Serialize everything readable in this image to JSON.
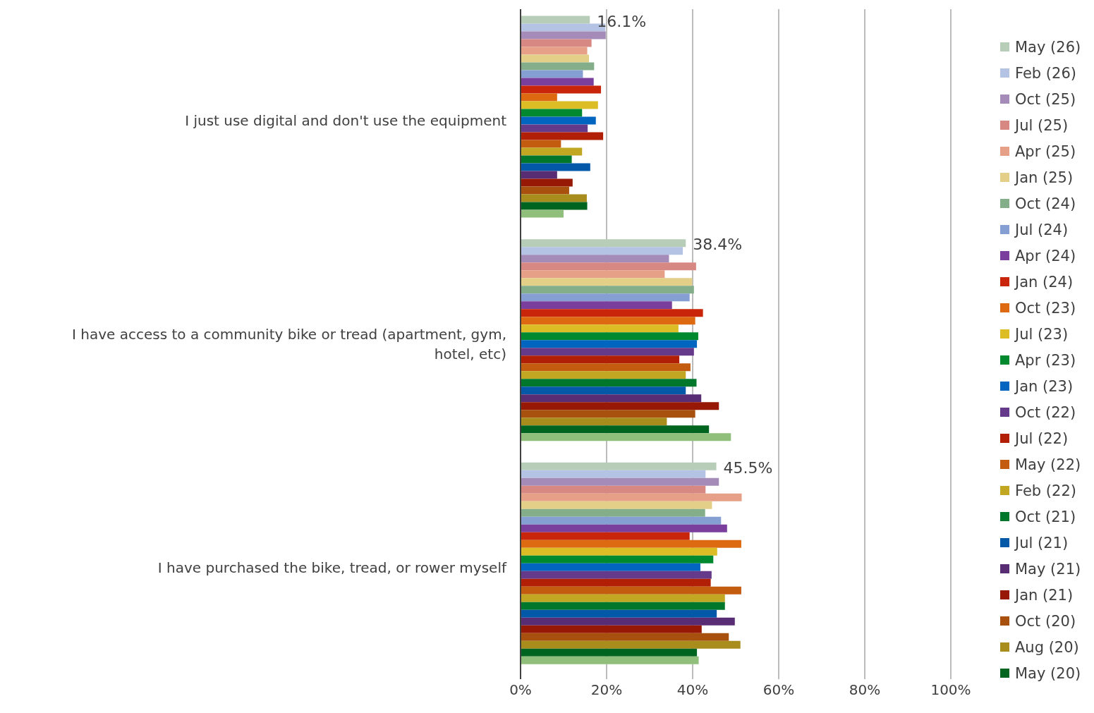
{
  "chart_data": {
    "type": "bar",
    "orientation": "horizontal",
    "categories": [
      "I just use digital and don't use the equipment",
      "I have access to a community bike or tread (apartment, gym, hotel, etc)",
      "I have purchased the bike, tread, or rower myself"
    ],
    "xlim": [
      0,
      100
    ],
    "xticks": [
      {
        "value": 0,
        "label": "0%"
      },
      {
        "value": 20,
        "label": "20%"
      },
      {
        "value": 40,
        "label": "40%"
      },
      {
        "value": 60,
        "label": "60%"
      },
      {
        "value": 80,
        "label": "80%"
      },
      {
        "value": 100,
        "label": "100%"
      }
    ],
    "grid": "x",
    "legend": "right",
    "series": [
      {
        "name": "May (26)",
        "color": "#b7cdb8",
        "values": [
          16.1,
          38.4,
          45.5
        ],
        "value_labels": [
          "16.1%",
          "38.4%",
          "45.5%"
        ]
      },
      {
        "name": "Feb (26)",
        "color": "#b4c3e3",
        "values": [
          19.7,
          37.7,
          43.0
        ]
      },
      {
        "name": "Oct (25)",
        "color": "#a48bb8",
        "values": [
          19.8,
          34.5,
          46.1
        ]
      },
      {
        "name": "Jul (25)",
        "color": "#d78883",
        "values": [
          16.5,
          40.8,
          43.0
        ]
      },
      {
        "name": "Apr (25)",
        "color": "#e6a088",
        "values": [
          15.5,
          33.5,
          51.4
        ]
      },
      {
        "name": "Jan (25)",
        "color": "#e3cf88",
        "values": [
          15.9,
          39.9,
          44.5
        ]
      },
      {
        "name": "Oct (24)",
        "color": "#84ae8a",
        "values": [
          17.1,
          40.3,
          42.9
        ]
      },
      {
        "name": "Jul (24)",
        "color": "#869fd3",
        "values": [
          14.5,
          39.3,
          46.6
        ]
      },
      {
        "name": "Apr (24)",
        "color": "#7a3f9c",
        "values": [
          17.0,
          35.2,
          48.0
        ]
      },
      {
        "name": "Jan (24)",
        "color": "#c9250a",
        "values": [
          18.7,
          42.4,
          39.3
        ]
      },
      {
        "name": "Oct (23)",
        "color": "#dd6a10",
        "values": [
          8.5,
          40.6,
          51.3
        ]
      },
      {
        "name": "Jul (23)",
        "color": "#dcbd26",
        "values": [
          18.0,
          36.7,
          45.7
        ]
      },
      {
        "name": "Apr (23)",
        "color": "#00892f",
        "values": [
          14.3,
          41.3,
          44.8
        ]
      },
      {
        "name": "Jan (23)",
        "color": "#0266c1",
        "values": [
          17.5,
          41.0,
          41.8
        ]
      },
      {
        "name": "Oct (22)",
        "color": "#663a8a",
        "values": [
          15.6,
          40.3,
          44.4
        ]
      },
      {
        "name": "Jul (22)",
        "color": "#b21f07",
        "values": [
          19.2,
          36.9,
          44.2
        ]
      },
      {
        "name": "May (22)",
        "color": "#c45c10",
        "values": [
          9.4,
          39.5,
          51.3
        ]
      },
      {
        "name": "Feb (22)",
        "color": "#c2a822",
        "values": [
          14.3,
          38.4,
          47.5
        ]
      },
      {
        "name": "Oct (21)",
        "color": "#00772a",
        "values": [
          11.9,
          40.9,
          47.5
        ]
      },
      {
        "name": "Jul (21)",
        "color": "#0358a8",
        "values": [
          16.2,
          38.4,
          45.6
        ]
      },
      {
        "name": "May (21)",
        "color": "#582d74",
        "values": [
          8.5,
          42.0,
          49.8
        ]
      },
      {
        "name": "Jan (21)",
        "color": "#961805",
        "values": [
          12.1,
          46.1,
          42.1
        ]
      },
      {
        "name": "Oct (20)",
        "color": "#a8500d",
        "values": [
          11.3,
          40.6,
          48.4
        ]
      },
      {
        "name": "Aug (20)",
        "color": "#a88c1c",
        "values": [
          15.4,
          34.0,
          51.1
        ]
      },
      {
        "name": "May (20)",
        "color": "#006421",
        "values": [
          15.5,
          43.8,
          41.0
        ]
      },
      {
        "color": "#8fbf7a",
        "values": [
          10.0,
          48.9,
          41.4
        ]
      }
    ]
  }
}
